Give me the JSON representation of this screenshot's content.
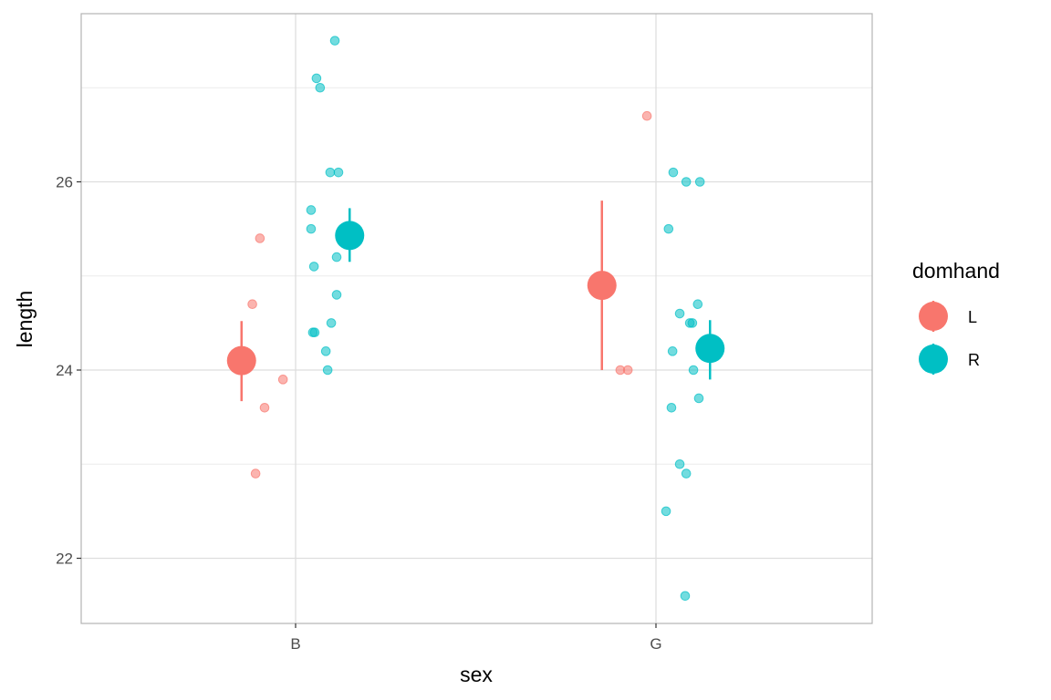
{
  "chart_data": {
    "type": "scatter",
    "title": "",
    "xlabel": "sex",
    "ylabel": "length",
    "categories": [
      "B",
      "G"
    ],
    "ylim": [
      21.35,
      27.85
    ],
    "y_ticks": [
      22,
      24,
      26
    ],
    "y_tick_labels": [
      "22",
      "24",
      "26"
    ],
    "grid": true,
    "legend": {
      "title": "domhand",
      "placement": "right",
      "entries": [
        {
          "label": "L",
          "color": "#F8766D"
        },
        {
          "label": "R",
          "color": "#00BFC4"
        }
      ]
    },
    "note": "x values are category index (B=1, G=2) plus horizontal jitter/dodge",
    "series": [
      {
        "name": "L",
        "color": "#F8766D",
        "points": [
          {
            "x": 0.901,
            "y": 25.4
          },
          {
            "x": 0.88,
            "y": 24.7
          },
          {
            "x": 0.965,
            "y": 23.9
          },
          {
            "x": 0.914,
            "y": 23.6
          },
          {
            "x": 0.889,
            "y": 22.9
          },
          {
            "x": 1.975,
            "y": 26.7
          },
          {
            "x": 1.901,
            "y": 24.0
          },
          {
            "x": 1.922,
            "y": 24.0
          }
        ],
        "means": [
          {
            "x": 0.85,
            "y": 24.1,
            "lo": 23.67,
            "hi": 24.52
          },
          {
            "x": 1.85,
            "y": 24.9,
            "lo": 24.0,
            "hi": 25.8
          }
        ]
      },
      {
        "name": "R",
        "color": "#00BFC4",
        "points": [
          {
            "x": 1.109,
            "y": 27.5
          },
          {
            "x": 1.058,
            "y": 27.1
          },
          {
            "x": 1.068,
            "y": 27.0
          },
          {
            "x": 1.096,
            "y": 26.1
          },
          {
            "x": 1.119,
            "y": 26.1
          },
          {
            "x": 1.043,
            "y": 25.7
          },
          {
            "x": 1.043,
            "y": 25.5
          },
          {
            "x": 1.051,
            "y": 25.1
          },
          {
            "x": 1.114,
            "y": 25.2
          },
          {
            "x": 1.114,
            "y": 24.8
          },
          {
            "x": 1.099,
            "y": 24.5
          },
          {
            "x": 1.048,
            "y": 24.4
          },
          {
            "x": 1.053,
            "y": 24.4
          },
          {
            "x": 1.084,
            "y": 24.2
          },
          {
            "x": 1.089,
            "y": 24.0
          },
          {
            "x": 2.048,
            "y": 26.1
          },
          {
            "x": 2.084,
            "y": 26.0
          },
          {
            "x": 2.122,
            "y": 26.0
          },
          {
            "x": 2.035,
            "y": 25.5
          },
          {
            "x": 2.116,
            "y": 24.7
          },
          {
            "x": 2.066,
            "y": 24.6
          },
          {
            "x": 2.094,
            "y": 24.5
          },
          {
            "x": 2.101,
            "y": 24.5
          },
          {
            "x": 2.046,
            "y": 24.2
          },
          {
            "x": 2.104,
            "y": 24.0
          },
          {
            "x": 2.119,
            "y": 23.7
          },
          {
            "x": 2.043,
            "y": 23.6
          },
          {
            "x": 2.066,
            "y": 23.0
          },
          {
            "x": 2.084,
            "y": 22.9
          },
          {
            "x": 2.028,
            "y": 22.5
          },
          {
            "x": 2.081,
            "y": 21.6
          }
        ],
        "means": [
          {
            "x": 1.15,
            "y": 25.43,
            "lo": 25.15,
            "hi": 25.72
          },
          {
            "x": 2.15,
            "y": 24.23,
            "lo": 23.9,
            "hi": 24.53
          }
        ]
      }
    ]
  }
}
